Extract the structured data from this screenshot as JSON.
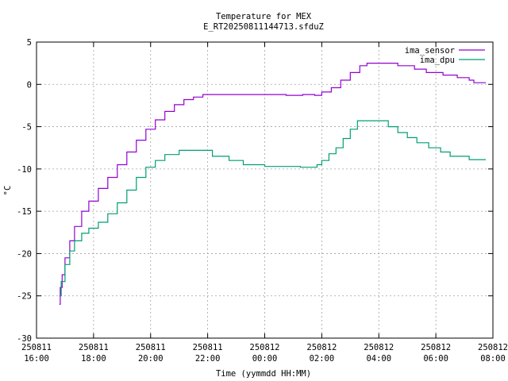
{
  "chart_data": {
    "type": "line",
    "title": "Temperature for MEX",
    "subtitle": "E_RT20250811144713.sfduZ",
    "xlabel": "Time (yymmdd HH:MM)",
    "ylabel": "°C",
    "ylim": [
      -30,
      5
    ],
    "yticks": [
      5,
      0,
      -5,
      -10,
      -15,
      -20,
      -25,
      -30
    ],
    "xlim": [
      "250811 16:00",
      "250812 08:00"
    ],
    "xticks": [
      {
        "date": "250811",
        "time": "16:00"
      },
      {
        "date": "250811",
        "time": "18:00"
      },
      {
        "date": "250811",
        "time": "20:00"
      },
      {
        "date": "250811",
        "time": "22:00"
      },
      {
        "date": "250812",
        "time": "00:00"
      },
      {
        "date": "250812",
        "time": "02:00"
      },
      {
        "date": "250812",
        "time": "04:00"
      },
      {
        "date": "250812",
        "time": "06:00"
      },
      {
        "date": "250812",
        "time": "08:00"
      }
    ],
    "grid": true,
    "legend_position": "top-right",
    "series": [
      {
        "name": "ima_sensor",
        "color": "#9400d3",
        "step": true,
        "points": [
          [
            "250811 16:48",
            -26.0
          ],
          [
            "250811 16:50",
            -24.0
          ],
          [
            "250811 16:54",
            -22.5
          ],
          [
            "250811 17:00",
            -20.5
          ],
          [
            "250811 17:10",
            -18.5
          ],
          [
            "250811 17:20",
            -16.8
          ],
          [
            "250811 17:35",
            -15.0
          ],
          [
            "250811 17:50",
            -13.8
          ],
          [
            "250811 18:10",
            -12.3
          ],
          [
            "250811 18:30",
            -11.0
          ],
          [
            "250811 18:50",
            -9.5
          ],
          [
            "250811 19:10",
            -8.0
          ],
          [
            "250811 19:30",
            -6.6
          ],
          [
            "250811 19:50",
            -5.3
          ],
          [
            "250811 20:10",
            -4.2
          ],
          [
            "250811 20:30",
            -3.2
          ],
          [
            "250811 20:50",
            -2.4
          ],
          [
            "250811 21:10",
            -1.8
          ],
          [
            "250811 21:30",
            -1.5
          ],
          [
            "250811 21:50",
            -1.2
          ],
          [
            "250812 00:45",
            -1.3
          ],
          [
            "250812 01:20",
            -1.2
          ],
          [
            "250812 01:45",
            -1.3
          ],
          [
            "250812 02:00",
            -0.9
          ],
          [
            "250812 02:20",
            -0.4
          ],
          [
            "250812 02:40",
            0.5
          ],
          [
            "250812 03:00",
            1.4
          ],
          [
            "250812 03:20",
            2.2
          ],
          [
            "250812 03:35",
            2.5
          ],
          [
            "250812 04:40",
            2.2
          ],
          [
            "250812 05:15",
            1.8
          ],
          [
            "250812 05:40",
            1.4
          ],
          [
            "250812 06:15",
            1.1
          ],
          [
            "250812 06:45",
            0.8
          ],
          [
            "250812 07:10",
            0.5
          ],
          [
            "250812 07:20",
            0.2
          ],
          [
            "250812 07:45",
            0.2
          ]
        ]
      },
      {
        "name": "ima_dpu",
        "color": "#009e73",
        "step": true,
        "points": [
          [
            "250811 16:48",
            -25.0
          ],
          [
            "250811 16:52",
            -23.3
          ],
          [
            "250811 17:00",
            -21.3
          ],
          [
            "250811 17:10",
            -19.7
          ],
          [
            "250811 17:20",
            -18.5
          ],
          [
            "250811 17:35",
            -17.6
          ],
          [
            "250811 17:50",
            -17.0
          ],
          [
            "250811 18:10",
            -16.3
          ],
          [
            "250811 18:30",
            -15.3
          ],
          [
            "250811 18:50",
            -14.0
          ],
          [
            "250811 19:10",
            -12.5
          ],
          [
            "250811 19:30",
            -11.0
          ],
          [
            "250811 19:50",
            -9.8
          ],
          [
            "250811 20:10",
            -9.0
          ],
          [
            "250811 20:30",
            -8.3
          ],
          [
            "250811 21:00",
            -7.8
          ],
          [
            "250811 22:10",
            -8.5
          ],
          [
            "250811 22:45",
            -9.0
          ],
          [
            "250811 23:15",
            -9.5
          ],
          [
            "250812 00:00",
            -9.7
          ],
          [
            "250812 01:15",
            -9.8
          ],
          [
            "250812 01:50",
            -9.5
          ],
          [
            "250812 02:00",
            -9.0
          ],
          [
            "250812 02:15",
            -8.2
          ],
          [
            "250812 02:30",
            -7.5
          ],
          [
            "250812 02:45",
            -6.4
          ],
          [
            "250812 03:00",
            -5.3
          ],
          [
            "250812 03:15",
            -4.3
          ],
          [
            "250812 03:30",
            -4.3
          ],
          [
            "250812 04:20",
            -5.0
          ],
          [
            "250812 04:40",
            -5.7
          ],
          [
            "250812 05:00",
            -6.3
          ],
          [
            "250812 05:20",
            -6.9
          ],
          [
            "250812 05:45",
            -7.5
          ],
          [
            "250812 06:10",
            -8.0
          ],
          [
            "250812 06:30",
            -8.5
          ],
          [
            "250812 07:10",
            -8.9
          ],
          [
            "250812 07:45",
            -8.9
          ]
        ]
      }
    ]
  }
}
